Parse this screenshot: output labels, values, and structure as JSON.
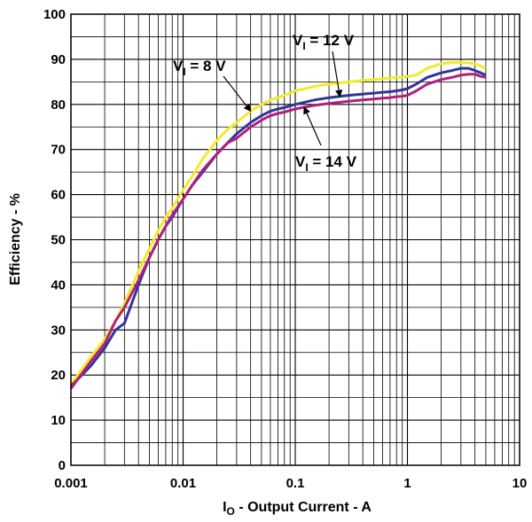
{
  "chart_data": {
    "type": "line",
    "xlabel_main": "I",
    "xlabel_sub": "O",
    "xlabel_rest": " - Output Current - A",
    "ylabel": "Efficiency - %",
    "x_scale": "log",
    "xlim": [
      0.001,
      10
    ],
    "ylim": [
      0,
      100
    ],
    "x_ticks": [
      "0.001",
      "0.01",
      "0.1",
      "1",
      "10"
    ],
    "y_ticks": [
      "0",
      "10",
      "20",
      "30",
      "40",
      "50",
      "60",
      "70",
      "80",
      "90",
      "100"
    ],
    "grid": true,
    "series": [
      {
        "name": "V_I = 8 V",
        "color": "#f2ea2a",
        "x": [
          0.001,
          0.0015,
          0.002,
          0.0025,
          0.003,
          0.004,
          0.005,
          0.006,
          0.007,
          0.008,
          0.01,
          0.012,
          0.015,
          0.02,
          0.025,
          0.03,
          0.04,
          0.05,
          0.06,
          0.07,
          0.08,
          0.1,
          0.15,
          0.2,
          0.3,
          0.4,
          0.5,
          0.6,
          0.7,
          0.8,
          0.9,
          1.0,
          1.2,
          1.5,
          2.0,
          2.5,
          3.0,
          3.5,
          4.0,
          4.5,
          5.0
        ],
        "y": [
          18,
          24,
          28,
          32,
          36,
          43,
          48,
          52,
          55,
          57,
          61,
          64,
          68,
          72,
          74.5,
          76,
          78.5,
          80,
          81,
          81.5,
          82,
          83,
          84,
          84.5,
          85,
          85.3,
          85.5,
          85.7,
          85.8,
          86,
          86,
          86.2,
          86.5,
          88,
          89,
          89.3,
          89.3,
          89.2,
          89,
          88.5,
          88
        ]
      },
      {
        "name": "V_I = 12 V",
        "color": "#333399",
        "x": [
          0.001,
          0.0015,
          0.002,
          0.0025,
          0.003,
          0.004,
          0.005,
          0.006,
          0.007,
          0.008,
          0.01,
          0.012,
          0.015,
          0.02,
          0.025,
          0.03,
          0.04,
          0.05,
          0.06,
          0.07,
          0.08,
          0.1,
          0.15,
          0.2,
          0.3,
          0.4,
          0.5,
          0.6,
          0.7,
          0.8,
          0.9,
          1.0,
          1.2,
          1.5,
          2.0,
          2.5,
          3.0,
          3.5,
          4.0,
          4.5,
          5.0
        ],
        "y": [
          17.5,
          22,
          26,
          30,
          31.5,
          40,
          46,
          50,
          53,
          55,
          59,
          62,
          65,
          69,
          71.5,
          73.5,
          76,
          77.5,
          78.5,
          79,
          79.3,
          80,
          81,
          81.5,
          82,
          82.3,
          82.5,
          82.7,
          82.8,
          83,
          83.2,
          83.5,
          84.5,
          86,
          87,
          87.5,
          88,
          88,
          87.5,
          87,
          86.5
        ]
      },
      {
        "name": "V_I = 14 V",
        "color": "#b0207a",
        "x": [
          0.001,
          0.0015,
          0.002,
          0.0025,
          0.003,
          0.004,
          0.005,
          0.006,
          0.007,
          0.008,
          0.01,
          0.012,
          0.015,
          0.02,
          0.025,
          0.03,
          0.04,
          0.05,
          0.06,
          0.07,
          0.08,
          0.1,
          0.15,
          0.2,
          0.3,
          0.4,
          0.5,
          0.6,
          0.7,
          0.8,
          0.9,
          1.0,
          1.2,
          1.5,
          2.0,
          2.5,
          3.0,
          3.5,
          4.0,
          4.5,
          5.0
        ],
        "y": [
          17,
          23,
          27,
          32,
          35,
          41,
          46,
          50,
          53,
          55.5,
          59,
          62,
          65.5,
          69,
          71.5,
          72.5,
          75,
          76.5,
          77.5,
          78,
          78.3,
          79,
          79.8,
          80.2,
          80.7,
          81,
          81.2,
          81.4,
          81.5,
          81.7,
          81.8,
          82,
          83,
          84.5,
          85.5,
          86,
          86.5,
          86.7,
          86.7,
          86.2,
          86
        ]
      }
    ],
    "annotations": [
      {
        "main": "V",
        "sub": "I",
        "rest": " = 8 V",
        "point_x": 0.04,
        "point_y": 78.5
      },
      {
        "main": "V",
        "sub": "I",
        "rest": " = 12 V",
        "point_x": 0.25,
        "point_y": 81.7
      },
      {
        "main": "V",
        "sub": "I",
        "rest": " = 14 V",
        "point_x": 0.12,
        "point_y": 79.4
      }
    ]
  }
}
